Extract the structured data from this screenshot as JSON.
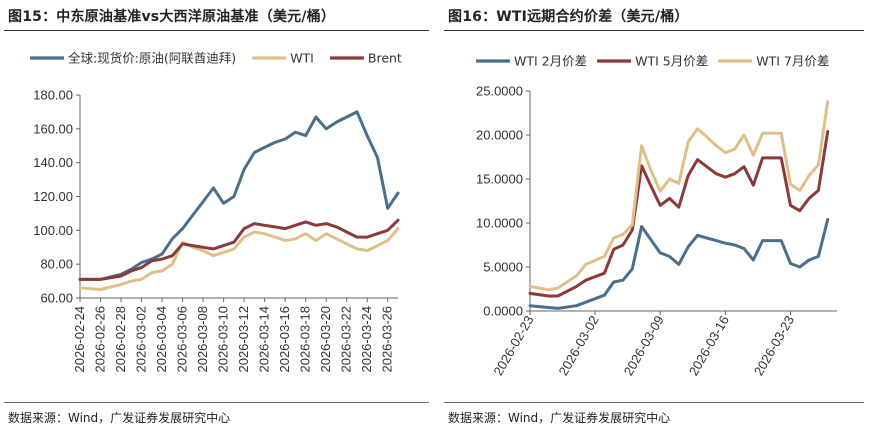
{
  "left": {
    "title": "图15：中东原油基准vs大西洋原油基准（美元/桶）",
    "source": "数据来源：Wind，广发证券发展研究中心",
    "chart_data": {
      "type": "line",
      "title": "图15：中东原油基准vs大西洋原油基准（美元/桶）",
      "x_tick_labels": [
        "2026-02-24",
        "2026-02-26",
        "2026-02-28",
        "2026-03-02",
        "2026-03-04",
        "2026-03-06",
        "2026-03-08",
        "2026-03-10",
        "2026-03-12",
        "2026-03-14",
        "2026-03-16",
        "2026-03-18",
        "2026-03-20",
        "2026-03-22",
        "2026-03-24",
        "2026-03-26"
      ],
      "y_tick_labels": [
        "60.00",
        "80.00",
        "100.00",
        "120.00",
        "140.00",
        "160.00",
        "180.00"
      ],
      "ylim": [
        60,
        180
      ],
      "xlim": [
        0,
        31
      ],
      "grid": false,
      "legend_position": "top",
      "series": [
        {
          "name": "全球:现货价:原油(阿联酋迪拜)",
          "color": "#4a6f8a",
          "x": [
            0,
            2,
            4,
            5,
            6,
            7,
            8,
            9,
            10,
            11,
            12,
            13,
            14,
            15,
            16,
            17,
            18,
            19,
            20,
            21,
            22,
            23,
            24,
            25,
            26,
            27,
            28,
            29,
            30,
            31
          ],
          "y": [
            71,
            71,
            74,
            77,
            81,
            83,
            86,
            95,
            101,
            109,
            117,
            125,
            116,
            120,
            136,
            146,
            149,
            152,
            154,
            158,
            156,
            167,
            160,
            164,
            167,
            170,
            156,
            143,
            113,
            122
          ]
        },
        {
          "name": "WTI",
          "color": "#e0c08a",
          "x": [
            0,
            2,
            4,
            5,
            6,
            7,
            8,
            9,
            10,
            11,
            12,
            13,
            14,
            15,
            16,
            17,
            18,
            19,
            20,
            21,
            22,
            23,
            24,
            25,
            26,
            27,
            28,
            29,
            30,
            31
          ],
          "y": [
            66,
            65,
            68,
            70,
            71,
            75,
            76,
            80,
            93,
            90,
            88,
            85,
            87,
            89,
            96,
            99,
            98,
            96,
            94,
            95,
            98,
            94,
            98,
            95,
            92,
            89,
            88,
            91,
            94,
            101
          ]
        },
        {
          "name": "Brent",
          "color": "#8b3a3a",
          "x": [
            0,
            2,
            4,
            5,
            6,
            7,
            8,
            9,
            10,
            11,
            12,
            13,
            14,
            15,
            16,
            17,
            18,
            19,
            20,
            21,
            22,
            23,
            24,
            25,
            26,
            27,
            28,
            29,
            30,
            31
          ],
          "y": [
            71,
            71,
            73,
            76,
            78,
            82,
            83,
            85,
            92,
            91,
            90,
            89,
            91,
            93,
            101,
            104,
            103,
            102,
            101,
            103,
            105,
            103,
            104,
            102,
            99,
            96,
            96,
            98,
            100,
            106
          ]
        }
      ]
    }
  },
  "right": {
    "title": "图16：WTI远期合约价差（美元/桶）",
    "source": "数据来源：Wind，广发证券发展研究中心",
    "chart_data": {
      "type": "line",
      "title": "图16：WTI远期合约价差（美元/桶）",
      "x_tick_labels": [
        "2026-02-23",
        "2026-03-02",
        "2026-03-09",
        "2026-03-16",
        "2026-03-23"
      ],
      "y_tick_labels": [
        "0.0000",
        "5.0000",
        "10.0000",
        "15.0000",
        "20.0000",
        "25.0000"
      ],
      "ylim": [
        0,
        25
      ],
      "xlim": [
        0,
        33
      ],
      "grid": false,
      "legend_position": "top",
      "series": [
        {
          "name": "WTI 2月价差",
          "color": "#4a6f8a",
          "x": [
            0,
            2,
            3,
            5,
            6,
            8,
            9,
            10,
            11,
            12,
            13,
            14,
            15,
            16,
            17,
            18,
            19,
            20,
            21,
            22,
            23,
            24,
            25,
            26,
            27,
            28,
            29,
            30,
            31,
            32
          ],
          "y": [
            0.6,
            0.4,
            0.3,
            0.6,
            1.0,
            1.8,
            3.3,
            3.5,
            4.8,
            9.6,
            8.1,
            6.6,
            6.2,
            5.3,
            7.3,
            8.6,
            8.3,
            8.0,
            7.7,
            7.5,
            7.1,
            5.8,
            8.0,
            8.0,
            8.0,
            5.4,
            5.0,
            5.8,
            6.2,
            10.4
          ]
        },
        {
          "name": "WTI 5月价差",
          "color": "#8b3a3a",
          "x": [
            0,
            2,
            3,
            5,
            6,
            8,
            9,
            10,
            11,
            12,
            13,
            14,
            15,
            16,
            17,
            18,
            19,
            20,
            21,
            22,
            23,
            24,
            25,
            26,
            27,
            28,
            29,
            30,
            31,
            32
          ],
          "y": [
            2.0,
            1.7,
            1.7,
            2.8,
            3.5,
            4.3,
            7.0,
            7.5,
            9.2,
            16.5,
            14.2,
            12.0,
            12.8,
            11.8,
            15.4,
            17.2,
            16.4,
            15.6,
            15.2,
            15.6,
            16.4,
            14.3,
            17.4,
            17.4,
            17.4,
            12.0,
            11.4,
            12.8,
            13.7,
            20.4
          ]
        },
        {
          "name": "WTI 7月价差",
          "color": "#e0c08a",
          "x": [
            0,
            2,
            3,
            5,
            6,
            8,
            9,
            10,
            11,
            12,
            13,
            14,
            15,
            16,
            17,
            18,
            19,
            20,
            21,
            22,
            23,
            24,
            25,
            26,
            27,
            28,
            29,
            30,
            31,
            32
          ],
          "y": [
            2.8,
            2.4,
            2.6,
            4.0,
            5.3,
            6.2,
            8.3,
            8.7,
            9.8,
            18.8,
            16.0,
            13.6,
            15.0,
            14.5,
            19.2,
            20.7,
            19.8,
            18.8,
            18.0,
            18.4,
            20.0,
            17.7,
            20.2,
            20.2,
            20.2,
            14.4,
            13.7,
            15.4,
            16.6,
            23.8
          ]
        }
      ]
    }
  }
}
